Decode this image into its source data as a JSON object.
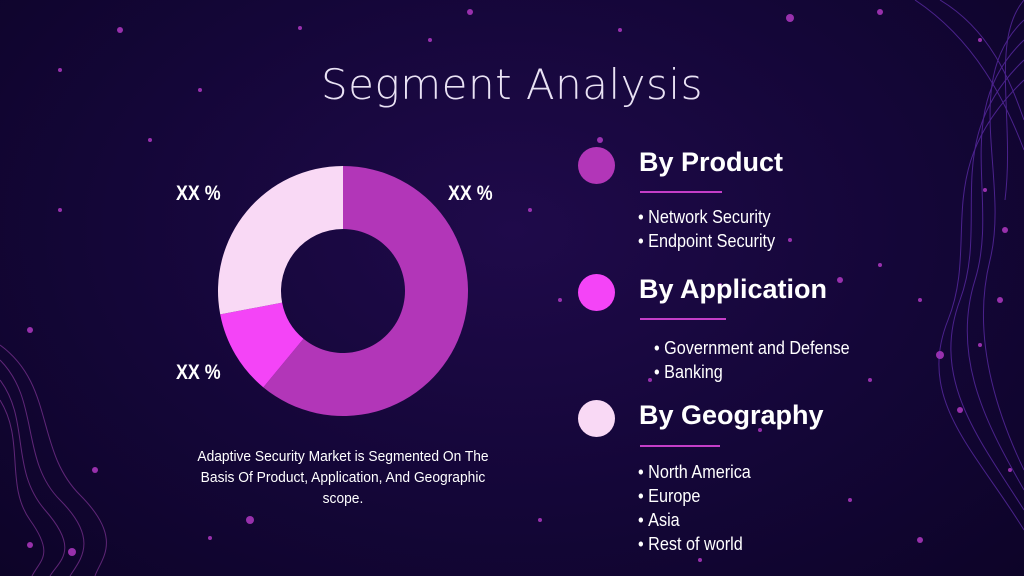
{
  "title": "Segment Analysis",
  "chart_data": {
    "type": "pie",
    "variant": "donut",
    "slices": [
      {
        "label": "XX %",
        "value": 61,
        "color": "#b236b8"
      },
      {
        "label": "XX %",
        "value": 11,
        "color": "#f444f7"
      },
      {
        "label": "XX %",
        "value": 28,
        "color": "#f9d9f5"
      }
    ],
    "title": "",
    "legend": "none"
  },
  "caption": "Adaptive Security Market is Segmented On The Basis Of Product, Application, And Geographic scope.",
  "segments": [
    {
      "heading": "By Product",
      "color": "#b236b8",
      "items": [
        "Network Security",
        "Endpoint Security"
      ]
    },
    {
      "heading": "By Application",
      "color": "#f444f7",
      "items": [
        "Government and Defense",
        "Banking"
      ]
    },
    {
      "heading": "By Geography",
      "color": "#f9d9f5",
      "items": [
        "North America",
        "Europe",
        "Asia",
        "Rest of world"
      ]
    }
  ]
}
